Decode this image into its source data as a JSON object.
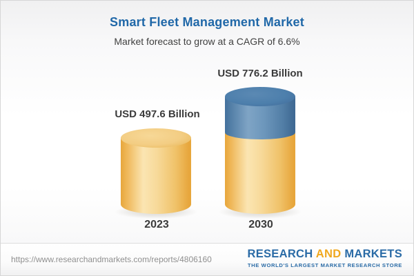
{
  "header": {
    "title": "Smart Fleet Management Market",
    "subtitle": "Market forecast to grow at a CAGR of 6.6%"
  },
  "chart_data": {
    "type": "bar",
    "subtype": "pictorial-cylinder",
    "title": "Smart Fleet Management Market",
    "subtitle": "Market forecast to grow at a CAGR of 6.6%",
    "categories": [
      "2023",
      "2030"
    ],
    "values": [
      497.6,
      776.2
    ],
    "data_labels": [
      "USD 497.6 Billion",
      "USD 776.2 Billion"
    ],
    "unit": "USD Billion",
    "cagr_percent": 6.6,
    "legend": "none",
    "axes": "none",
    "colors": {
      "base_segment": "#f0c269",
      "growth_segment": "#5585b0",
      "title_text": "#2068a8",
      "label_text": "#3b3b3b"
    }
  },
  "bars": [
    {
      "year": "2023",
      "value_label": "USD 497.6 Billion"
    },
    {
      "year": "2030",
      "value_label": "USD 776.2 Billion"
    }
  ],
  "footer": {
    "url": "https://www.researchandmarkets.com/reports/4806160",
    "logo": {
      "word1": "RESEARCH",
      "word2": "AND",
      "word3": "MARKETS",
      "tagline": "THE WORLD'S LARGEST MARKET RESEARCH STORE"
    }
  }
}
